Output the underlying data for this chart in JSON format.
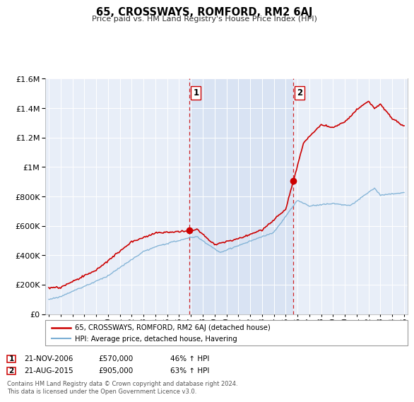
{
  "title": "65, CROSSWAYS, ROMFORD, RM2 6AJ",
  "subtitle": "Price paid vs. HM Land Registry's House Price Index (HPI)",
  "legend_line1": "65, CROSSWAYS, ROMFORD, RM2 6AJ (detached house)",
  "legend_line2": "HPI: Average price, detached house, Havering",
  "annotation1_label": "1",
  "annotation1_date": "21-NOV-2006",
  "annotation1_price": "£570,000",
  "annotation1_hpi": "46% ↑ HPI",
  "annotation1_year": 2006.89,
  "annotation1_value": 570000,
  "annotation2_label": "2",
  "annotation2_date": "21-AUG-2015",
  "annotation2_price": "£905,000",
  "annotation2_hpi": "63% ↑ HPI",
  "annotation2_year": 2015.63,
  "annotation2_value": 905000,
  "footer": "Contains HM Land Registry data © Crown copyright and database right 2024.\nThis data is licensed under the Open Government Licence v3.0.",
  "hpi_color": "#7bafd4",
  "price_color": "#cc0000",
  "vline_color": "#cc0000",
  "background_color": "#ffffff",
  "plot_bg_color": "#e8eef8",
  "highlight_color": "#d0ddf0",
  "ylim": [
    0,
    1600000
  ],
  "xlim_start": 1994.7,
  "xlim_end": 2025.3,
  "yticks": [
    0,
    200000,
    400000,
    600000,
    800000,
    1000000,
    1200000,
    1400000,
    1600000
  ],
  "xticks": [
    1995,
    1996,
    1997,
    1998,
    1999,
    2000,
    2001,
    2002,
    2003,
    2004,
    2005,
    2006,
    2007,
    2008,
    2009,
    2010,
    2011,
    2012,
    2013,
    2014,
    2015,
    2016,
    2017,
    2018,
    2019,
    2020,
    2021,
    2022,
    2023,
    2024,
    2025
  ]
}
